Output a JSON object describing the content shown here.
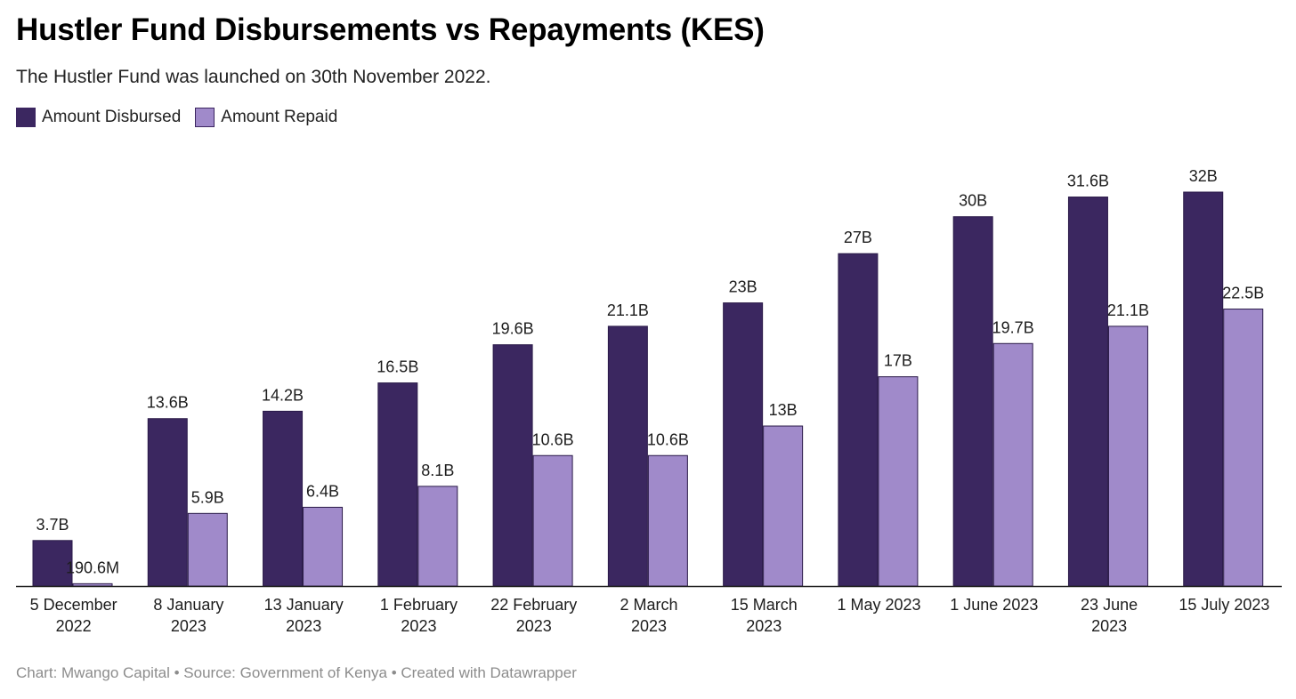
{
  "title": "Hustler Fund Disbursements vs Repayments (KES)",
  "subtitle": "The Hustler Fund was launched on 30th November 2022.",
  "footer": "Chart: Mwango Capital • Source: Government of Kenya • Created with Datawrapper",
  "colors": {
    "disbursed": "#3b2760",
    "repaid": "#a08aca",
    "axis": "#222222"
  },
  "chart_data": {
    "type": "bar",
    "title": "Hustler Fund Disbursements vs Repayments (KES)",
    "subtitle": "The Hustler Fund was launched on 30th November 2022.",
    "categories": [
      [
        "5 December",
        "2022"
      ],
      [
        "8 January",
        "2023"
      ],
      [
        "13 January",
        "2023"
      ],
      [
        "1 February",
        "2023"
      ],
      [
        "22 February",
        "2023"
      ],
      [
        "2 March",
        "2023"
      ],
      [
        "15 March",
        "2023"
      ],
      [
        "1 May 2023"
      ],
      [
        "1 June 2023"
      ],
      [
        "23 June",
        "2023"
      ],
      [
        "15 July 2023"
      ]
    ],
    "series": [
      {
        "name": "Amount Disbursed",
        "values": [
          3.7,
          13.6,
          14.2,
          16.5,
          19.6,
          21.1,
          23,
          27,
          30,
          31.6,
          32
        ],
        "labels": [
          "3.7B",
          "13.6B",
          "14.2B",
          "16.5B",
          "19.6B",
          "21.1B",
          "23B",
          "27B",
          "30B",
          "31.6B",
          "32B"
        ]
      },
      {
        "name": "Amount Repaid",
        "values": [
          0.1906,
          5.9,
          6.4,
          8.1,
          10.6,
          10.6,
          13,
          17,
          19.7,
          21.1,
          22.5
        ],
        "labels": [
          "190.6M",
          "5.9B",
          "6.4B",
          "8.1B",
          "10.6B",
          "10.6B",
          "13B",
          "17B",
          "19.7B",
          "21.1B",
          "22.5B"
        ]
      }
    ],
    "unit": "billion KES",
    "ylim": [
      0,
      32
    ],
    "grid": false,
    "legend": "top-left"
  }
}
